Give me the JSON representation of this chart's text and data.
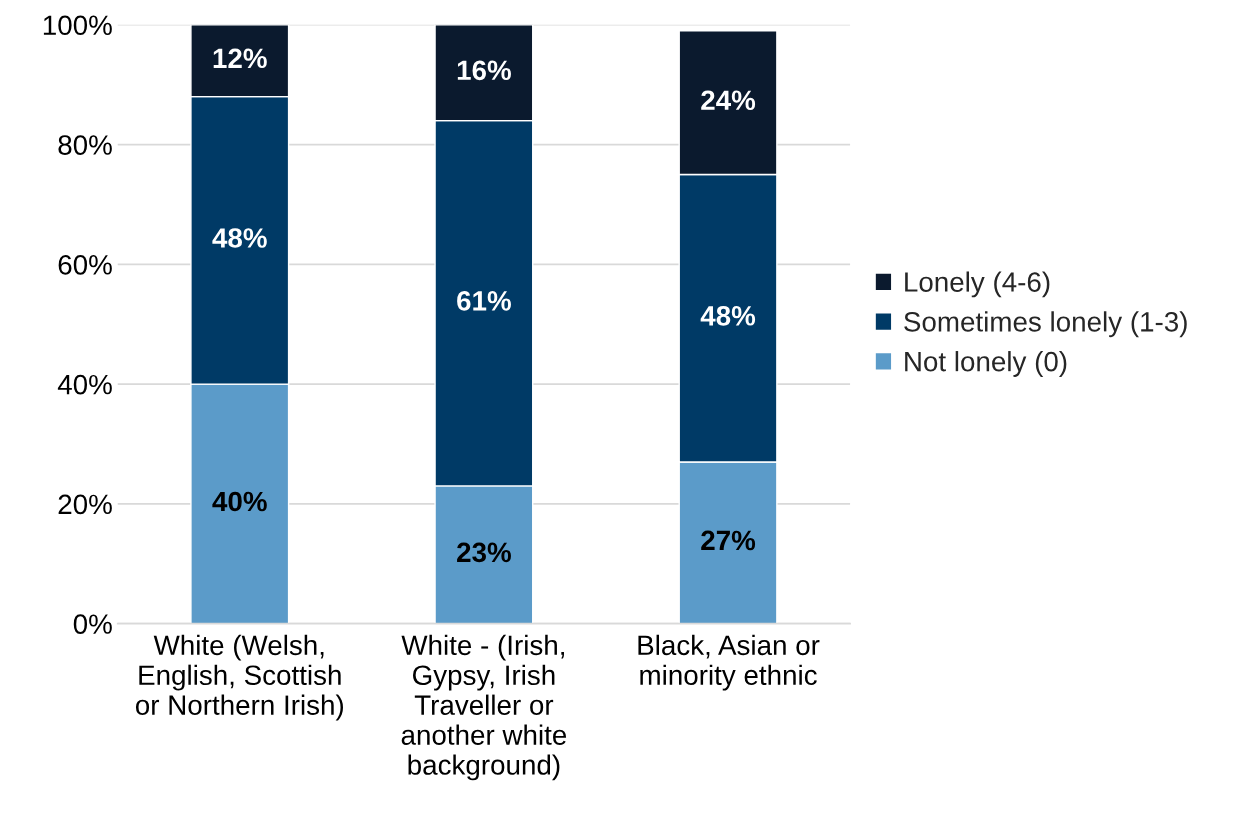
{
  "chart_data": {
    "type": "bar",
    "stacked": true,
    "categories": [
      "White (Welsh,\nEnglish, Scottish\nor Northern Irish)",
      "White - (Irish,\nGypsy, Irish\nTraveller or\nanother white\nbackground)",
      "Black, Asian or\nminority ethnic"
    ],
    "series": [
      {
        "name": "Not lonely (0)",
        "color": "#5b9bc9",
        "values": [
          40,
          23,
          27
        ],
        "value_labels": [
          "40%",
          "23%",
          "27%"
        ]
      },
      {
        "name": "Sometimes lonely (1-3)",
        "color": "#003a66",
        "values": [
          48,
          61,
          48
        ],
        "value_labels": [
          "48%",
          "61%",
          "48%"
        ]
      },
      {
        "name": "Lonely (4-6)",
        "color": "#0b1a2e",
        "values": [
          12,
          16,
          24
        ],
        "value_labels": [
          "12%",
          "16%",
          "24%"
        ]
      }
    ],
    "ylim": [
      0,
      100
    ],
    "yticks": [
      {
        "value": 0,
        "label": "0%"
      },
      {
        "value": 20,
        "label": "20%"
      },
      {
        "value": 40,
        "label": "40%"
      },
      {
        "value": 60,
        "label": "60%"
      },
      {
        "value": 80,
        "label": "80%"
      },
      {
        "value": 100,
        "label": "100%"
      }
    ],
    "grid": "y",
    "legend": "right"
  }
}
